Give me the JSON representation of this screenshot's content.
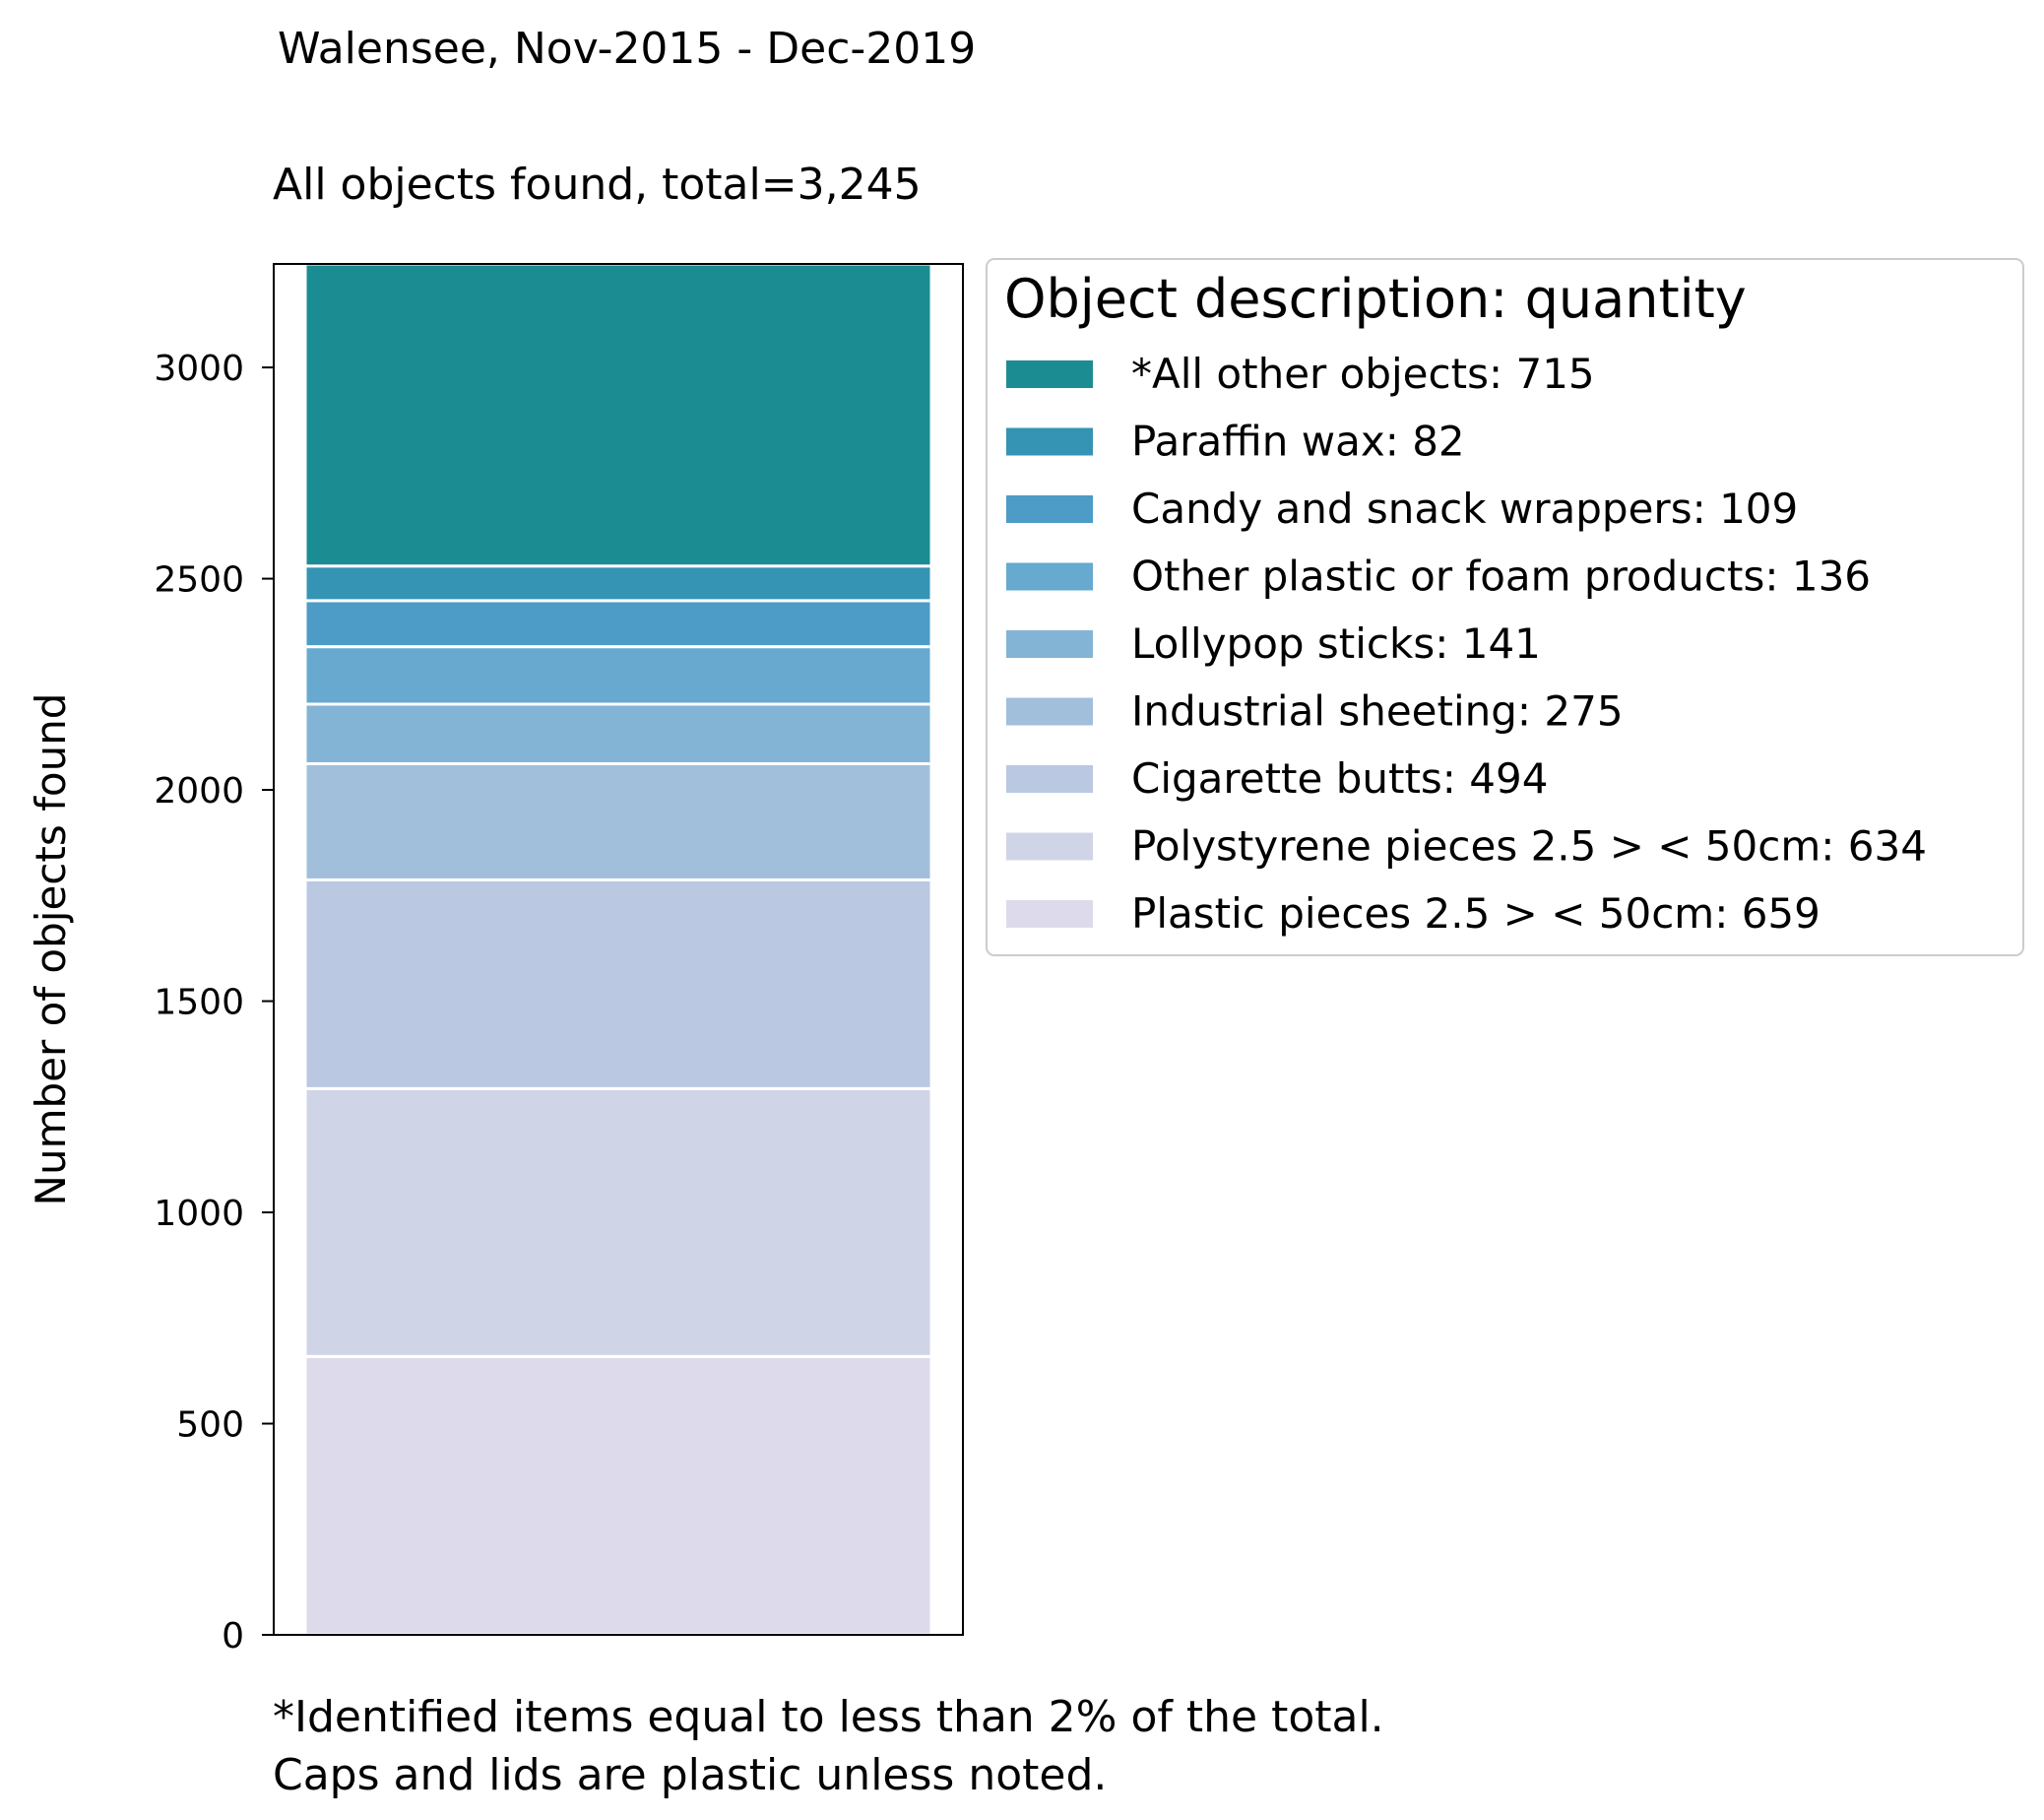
{
  "chart_data": {
    "type": "bar",
    "stacked": true,
    "suptitle": "Walensee, Nov-2015 - Dec-2019",
    "title": "All objects found,  total=3,245",
    "ylabel": "Number of objects found",
    "ylim": [
      0,
      3245
    ],
    "yticks": [
      0,
      500,
      1000,
      1500,
      2000,
      2500,
      3000
    ],
    "grid": false,
    "legend": {
      "title": "Object description: quantity",
      "placement": "right-outside-top"
    },
    "series": [
      {
        "name": "Plastic pieces 2.5 > < 50cm",
        "value": 659,
        "label": "Plastic pieces 2.5 > < 50cm: 659",
        "color": "#dddbeb"
      },
      {
        "name": "Polystyrene pieces 2.5 > < 50cm",
        "value": 634,
        "label": "Polystyrene pieces 2.5 > < 50cm: 634",
        "color": "#d0d4e7"
      },
      {
        "name": "Cigarette butts",
        "value": 494,
        "label": "Cigarette butts: 494",
        "color": "#bac8e2"
      },
      {
        "name": "Industrial sheeting",
        "value": 275,
        "label": "Industrial sheeting: 275",
        "color": "#a1bfdb"
      },
      {
        "name": "Lollypop sticks",
        "value": 141,
        "label": "Lollypop sticks: 141",
        "color": "#83b4d5"
      },
      {
        "name": "Other plastic or foam products",
        "value": 136,
        "label": "Other plastic or foam products: 136",
        "color": "#67a9cf"
      },
      {
        "name": "Candy and snack wrappers",
        "value": 109,
        "label": "Candy and snack wrappers: 109",
        "color": "#4d9bc7"
      },
      {
        "name": "Paraffin wax",
        "value": 82,
        "label": "Paraffin wax: 82",
        "color": "#3594b3"
      },
      {
        "name": "*All other objects",
        "value": 715,
        "label": "*All other objects: 715",
        "color": "#1c8c93"
      }
    ],
    "footnote": [
      "*Identified items equal to less than 2% of the total.",
      "Caps and lids are plastic unless noted."
    ]
  }
}
